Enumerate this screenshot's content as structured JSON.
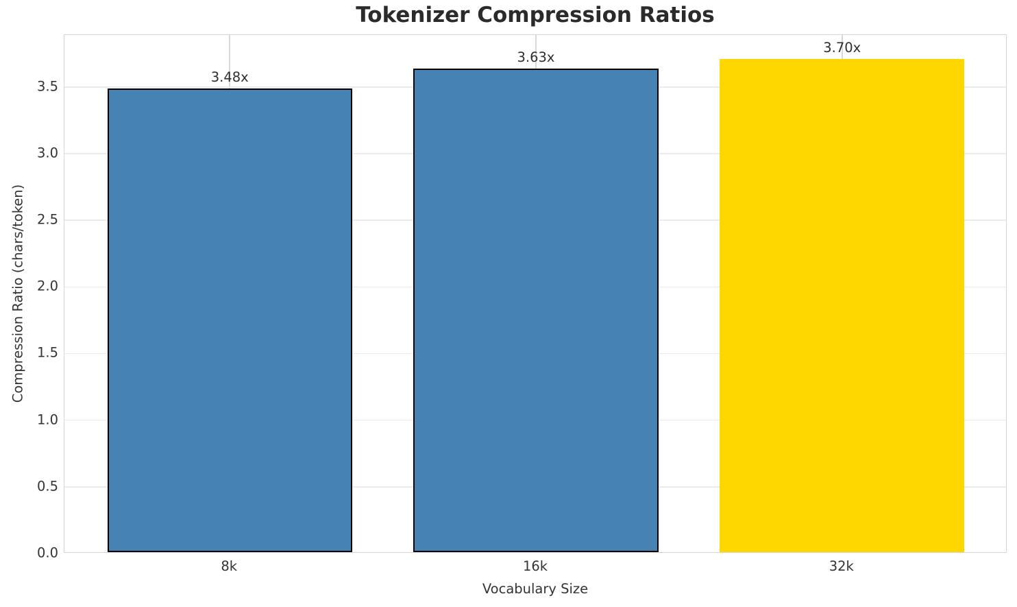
{
  "chart_data": {
    "type": "bar",
    "title": "Tokenizer Compression Ratios",
    "xlabel": "Vocabulary Size",
    "ylabel": "Compression Ratio (chars/token)",
    "categories": [
      "8k",
      "16k",
      "32k"
    ],
    "values": [
      3.48,
      3.63,
      3.7
    ],
    "bar_labels": [
      "3.48x",
      "3.63x",
      "3.70x"
    ],
    "bar_colors": [
      "#4682B4",
      "#4682B4",
      "#FFD700"
    ],
    "bar_edge_colors": [
      "#000000",
      "#000000",
      null
    ],
    "ytick_labels": [
      "0.0",
      "0.5",
      "1.0",
      "1.5",
      "2.0",
      "2.5",
      "3.0",
      "3.5"
    ],
    "yticks": [
      0.0,
      0.5,
      1.0,
      1.5,
      2.0,
      2.5,
      3.0,
      3.5
    ],
    "ylim": [
      0,
      3.89
    ],
    "grid": true,
    "legend": null,
    "colors": {
      "default_bar": "#4682B4",
      "highlight_bar": "#FFD700",
      "grid_h": "#ebebeb",
      "grid_v": "#d9d9d9",
      "spine": "#d4d4d4",
      "text": "#262626"
    }
  }
}
